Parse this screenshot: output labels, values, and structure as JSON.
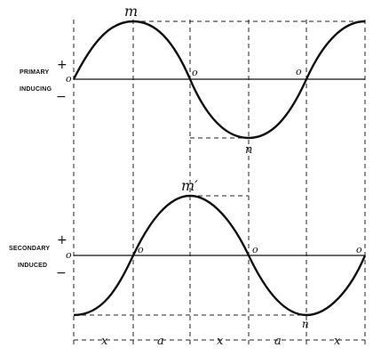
{
  "primary": {
    "name_line1": "PRIMARY",
    "name_line2": "INDUCING",
    "plus": "+",
    "minus": "−",
    "origin": "o",
    "zero_mid": "o",
    "zero_right": "o",
    "max_label": "m",
    "min_label": "n"
  },
  "secondary": {
    "name_line1": "SECONDARY",
    "name_line2": "INDUCED",
    "plus": "+",
    "minus": "−",
    "origin": "o",
    "zero_left": "o",
    "zero_mid": "o",
    "zero_right": "o",
    "max_label": "m′",
    "min_label": "n"
  },
  "intervals": [
    "x",
    "a",
    "x",
    "a",
    "x"
  ],
  "colors": {
    "ink": "#111111",
    "paper": "#ffffff"
  }
}
